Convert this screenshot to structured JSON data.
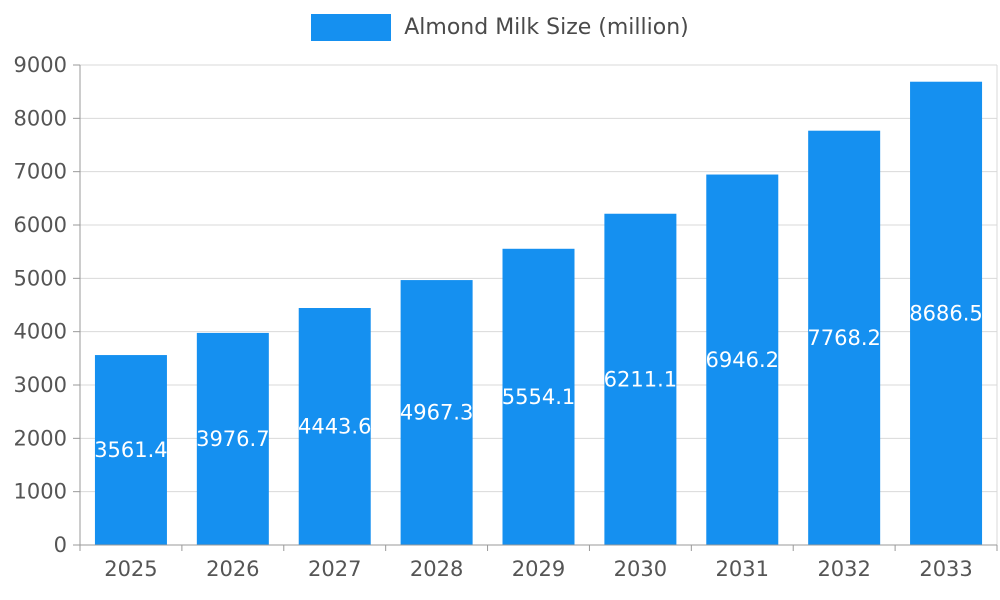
{
  "chart_data": {
    "type": "bar",
    "title": "Almond Milk Size (million)",
    "categories": [
      "2025",
      "2026",
      "2027",
      "2028",
      "2029",
      "2030",
      "2031",
      "2032",
      "2033"
    ],
    "values": [
      3561.4,
      3976.7,
      4443.6,
      4967.3,
      5554.1,
      6211.1,
      6946.2,
      7768.2,
      8686.5
    ],
    "value_labels": [
      "3561.4",
      "3976.7",
      "4443.6",
      "4967.3",
      "5554.1",
      "6211.1",
      "6946.2",
      "7768.2",
      "8686.5"
    ],
    "xlabel": "",
    "ylabel": "",
    "ylim": [
      0,
      9000
    ],
    "ytick_step": 1000,
    "grid": true,
    "legend_position": "top",
    "colors": {
      "bar": "#1590f0",
      "value_label": "#ffffff",
      "axis_text": "#555555",
      "legend_text": "#4a4a4a",
      "grid_line": "#d9d9d9",
      "axis_line": "#999999"
    }
  }
}
